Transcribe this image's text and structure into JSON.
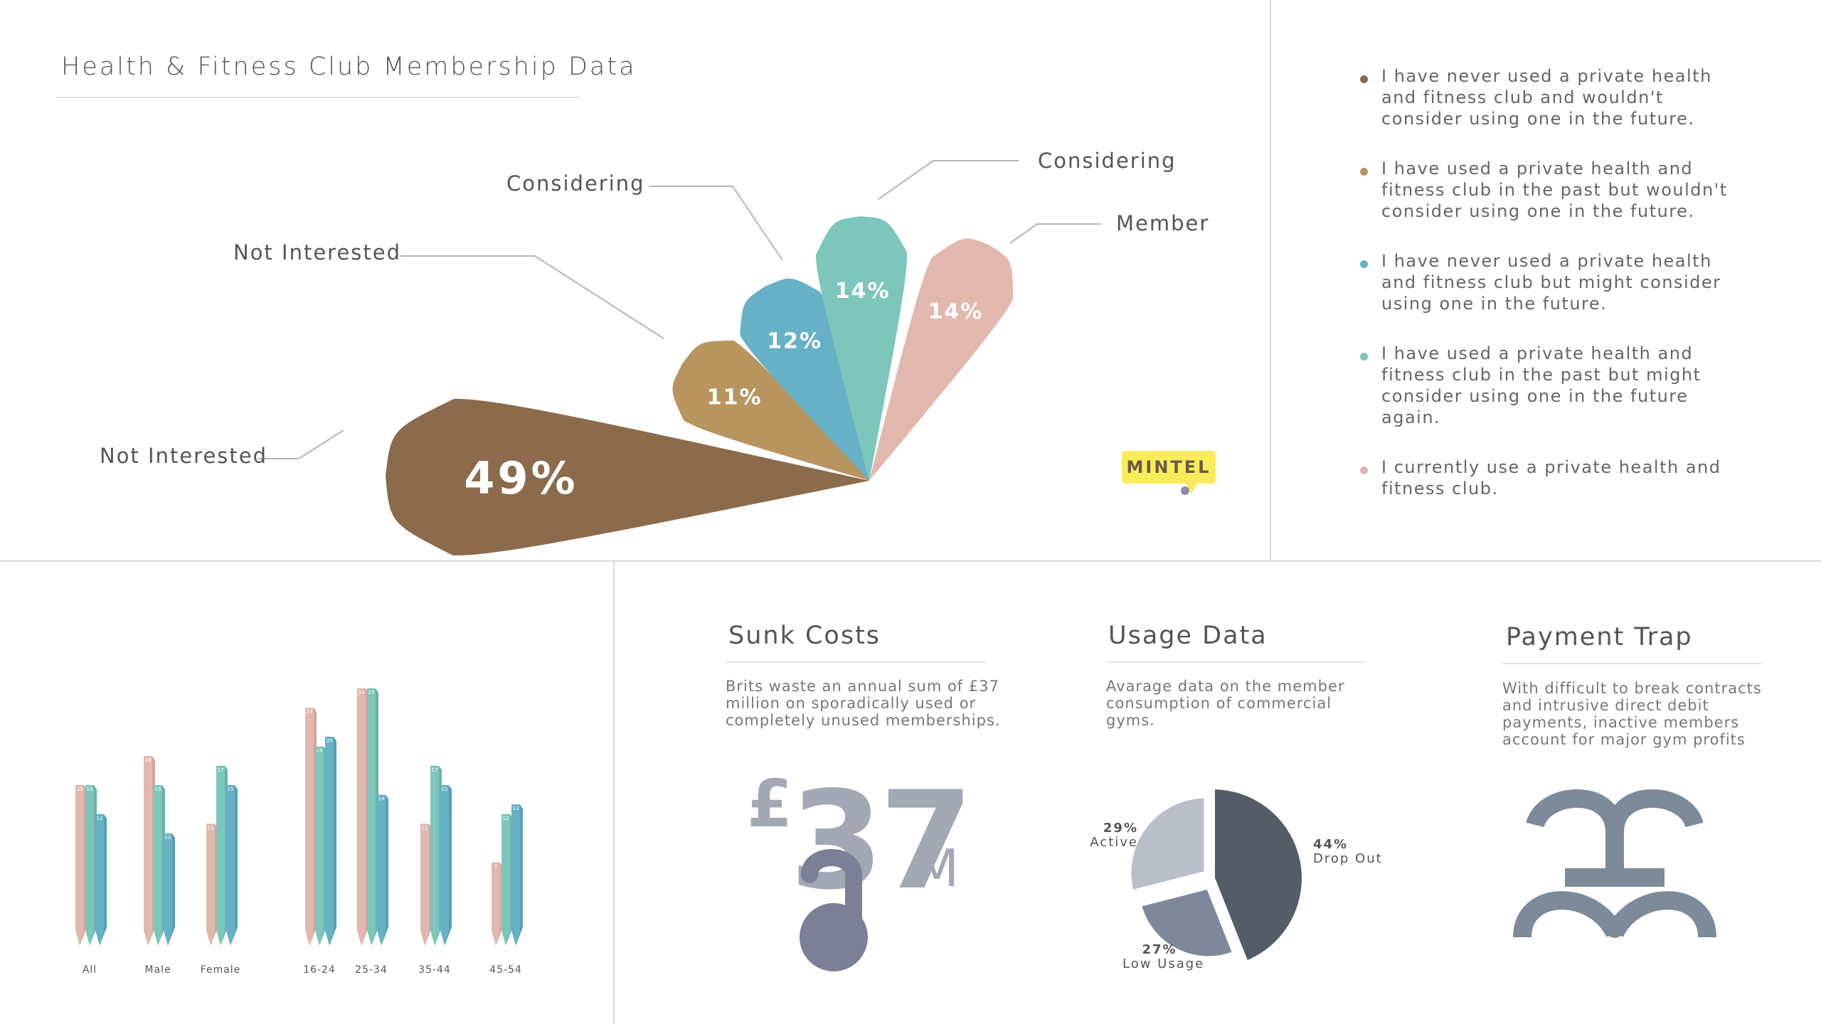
{
  "title": "Health & Fitness Club Membership Data",
  "colors": {
    "not_interested_never": "#8c6a4c",
    "not_interested_past": "#b8945f",
    "considering_never": "#66b1c6",
    "considering_past": "#7cc6bb",
    "member": "#e1b7ae",
    "pie_dark": "#555c68",
    "pie_mid": "#7f8898",
    "pie_light": "#b9bec7",
    "symbol": "#7c8a99"
  },
  "chart_data": [
    {
      "type": "pie",
      "labels": [
        "Not Interested",
        "Not Interested",
        "Considering",
        "Considering",
        "Member"
      ],
      "values": [
        49,
        11,
        12,
        14,
        14
      ],
      "value_labels": [
        "49%",
        "11%",
        "12%",
        "14%",
        "14%"
      ],
      "legend": [
        "I have never used a private health and fitness club and wouldn't consider using one in the future.",
        "I have used a private health and fitness club in the past but wouldn't consider using one in the future.",
        "I have never used a private health and fitness club but might consider using one in the future.",
        "I have used a private health and fitness club in the past but might consider using one in the future again.",
        "I currently use a private health and fitness club."
      ]
    },
    {
      "type": "bar",
      "categories": [
        "All",
        "Male",
        "Female",
        "16-24",
        "25-34",
        "35-44",
        "45-54"
      ],
      "series": [
        {
          "values": [
            15,
            18,
            11,
            23,
            25,
            11,
            7
          ]
        },
        {
          "values": [
            15,
            15,
            17,
            19,
            25,
            17,
            12
          ]
        },
        {
          "values": [
            12,
            10,
            15,
            20,
            14,
            15,
            13
          ]
        }
      ],
      "ylim": [
        0,
        30
      ]
    },
    {
      "type": "pie",
      "labels": [
        "Drop Out",
        "Low Usage",
        "Active"
      ],
      "values": [
        44,
        27,
        29
      ],
      "value_labels": [
        "44%",
        "27%",
        "29%"
      ]
    }
  ],
  "petal_labels": {
    "p49": "Not Interested",
    "p11": "Not Interested",
    "p12": "Considering",
    "p14a": "Considering",
    "p14b": "Member"
  },
  "logo": "MINTEL",
  "sunk": {
    "title": "Sunk Costs",
    "desc": "Brits waste an annual sum of £37 million on sporadically used or completely unused memberships.",
    "currency": "£",
    "amount": "37",
    "unit": "M"
  },
  "usage": {
    "title": "Usage Data",
    "desc": "Avarage data on the member consumption of commercial gyms."
  },
  "payment": {
    "title": "Payment Trap",
    "desc": "With difficult to break contracts and intrusive direct debit payments, inactive members account for major gym profits"
  }
}
